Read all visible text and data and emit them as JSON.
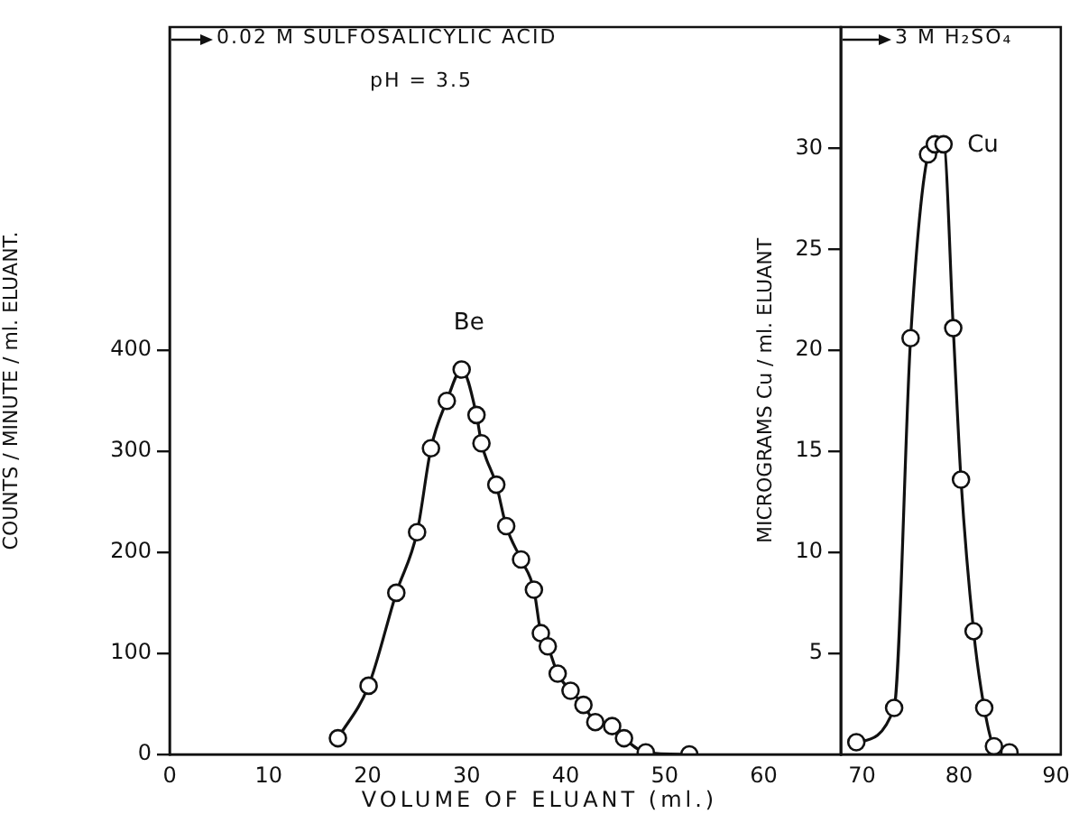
{
  "chart_data": [
    {
      "type": "line",
      "xlabel": "VOLUME OF ELUANT (ml.)",
      "ylabel": "COUNTS / MINUTE / ml. ELUANT.",
      "annotations": [
        "0.02 M SULFOSALICYLIC ACID",
        "pH = 3.5"
      ],
      "marker": "circle",
      "xlim": [
        0,
        67.8
      ],
      "xticks": [
        0,
        10,
        20,
        30,
        40,
        50,
        60
      ],
      "ylim": [
        0,
        720
      ],
      "yticks": [
        0,
        100,
        200,
        300,
        400
      ],
      "series": [
        {
          "name": "Be",
          "color": "#111111",
          "x": [
            17.0,
            20.1,
            22.9,
            25.0,
            26.4,
            28.0,
            29.5,
            31.0,
            31.5,
            33.0,
            34.0,
            35.5,
            36.8,
            37.5,
            38.2,
            39.2,
            40.5,
            41.8,
            43.0,
            44.7,
            45.9,
            48.1,
            52.5
          ],
          "values": [
            16,
            68,
            160,
            220,
            303,
            350,
            381,
            336,
            308,
            267,
            226,
            193,
            163,
            120,
            107,
            80,
            63,
            49,
            32,
            28,
            16,
            2,
            0
          ]
        }
      ]
    },
    {
      "type": "line",
      "ylabel": "MICROGRAMS Cu / ml. ELUANT",
      "annotations": [
        "3 M H₂SO₄"
      ],
      "marker": "circle",
      "xlim": [
        67.8,
        90.5
      ],
      "xticks": [
        70,
        80,
        90
      ],
      "ylim": [
        0,
        36
      ],
      "yticks": [
        5,
        10,
        15,
        20,
        25,
        30
      ],
      "series": [
        {
          "name": "Cu",
          "color": "#111111",
          "x": [
            69.4,
            73.3,
            75.0,
            76.8,
            77.5,
            78.4,
            79.4,
            80.2,
            81.5,
            82.6,
            83.6,
            85.2
          ],
          "values": [
            0.6,
            2.3,
            20.6,
            29.7,
            30.2,
            30.2,
            21.1,
            13.6,
            6.1,
            2.3,
            0.4,
            0.1
          ]
        }
      ]
    }
  ]
}
